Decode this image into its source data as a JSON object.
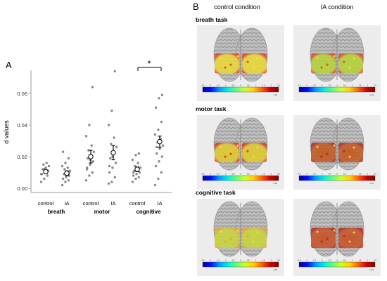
{
  "panel_a": {
    "letter": "A",
    "chart_data": {
      "type": "scatter",
      "ylabel": "d values",
      "ylim": [
        0,
        0.075
      ],
      "y_ticks": [
        "0.00",
        "0.02",
        "0.04",
        "0.06"
      ],
      "y_tick_values": [
        0,
        0.02,
        0.04,
        0.06
      ],
      "categories": [
        "control",
        "IA",
        "control",
        "IA",
        "control",
        "IA"
      ],
      "groups": [
        "breath",
        "motor",
        "cognitive"
      ],
      "significance_marker": "*",
      "significance_between": [
        4,
        5
      ],
      "columns": [
        {
          "mean": 0.0105,
          "err": 0.0012,
          "points": [
            0.004,
            0.006,
            0.008,
            0.009,
            0.01,
            0.011,
            0.012,
            0.013,
            0.014,
            0.015,
            0.016,
            0.009,
            0.012
          ]
        },
        {
          "mean": 0.0095,
          "err": 0.0015,
          "points": [
            0.002,
            0.004,
            0.005,
            0.006,
            0.007,
            0.008,
            0.009,
            0.01,
            0.011,
            0.012,
            0.013,
            0.014,
            0.016,
            0.019,
            0.023,
            0.008,
            0.01
          ]
        },
        {
          "mean": 0.02,
          "err": 0.004,
          "points": [
            0.005,
            0.008,
            0.01,
            0.013,
            0.015,
            0.017,
            0.019,
            0.021,
            0.023,
            0.024,
            0.027,
            0.033,
            0.04,
            0.064,
            0.012,
            0.018
          ]
        },
        {
          "mean": 0.0225,
          "err": 0.0045,
          "points": [
            0.003,
            0.004,
            0.007,
            0.01,
            0.013,
            0.016,
            0.019,
            0.022,
            0.026,
            0.028,
            0.032,
            0.04,
            0.049,
            0.074,
            0.014,
            0.02
          ]
        },
        {
          "mean": 0.012,
          "err": 0.0015,
          "points": [
            0.004,
            0.006,
            0.007,
            0.008,
            0.009,
            0.01,
            0.011,
            0.012,
            0.013,
            0.014,
            0.016,
            0.018,
            0.021,
            0.022,
            0.01
          ]
        },
        {
          "mean": 0.0295,
          "err": 0.0035,
          "points": [
            0.002,
            0.006,
            0.01,
            0.014,
            0.017,
            0.02,
            0.022,
            0.025,
            0.027,
            0.029,
            0.031,
            0.034,
            0.037,
            0.042,
            0.051,
            0.057,
            0.059,
            0.026
          ]
        }
      ]
    }
  },
  "panel_b": {
    "letter": "B",
    "col_headers": [
      "control condition",
      "IA condition"
    ],
    "rows": [
      {
        "label": "breath task",
        "patches": [
          {
            "tint": "#e8d83a",
            "hot": "#e63b1a"
          },
          {
            "tint": "#b6d23b",
            "hot": "#e3451c"
          }
        ]
      },
      {
        "label": "motor task",
        "patches": [
          {
            "tint": "#e0c92f",
            "hot": "#d6341c"
          },
          {
            "tint": "#c45a22",
            "hot": "#a8241c"
          }
        ]
      },
      {
        "label": "cognitive task",
        "patches": [
          {
            "tint": "#c9d43c",
            "hot": "#e4a53a"
          },
          {
            "tint": "#c6542a",
            "hot": "#b8201c"
          }
        ]
      }
    ],
    "colorbar_colors": [
      "#0000a0",
      "#0010ff",
      "#00a0ff",
      "#00f0e0",
      "#60ff80",
      "#d0ff20",
      "#ffd000",
      "#ff6000",
      "#d00000",
      "#800000"
    ],
    "colorbar_ticks": [
      "-2.5",
      "-2",
      "-1.5",
      "-1",
      "-0.5",
      "0",
      "0.5",
      "1",
      "1.5",
      "2",
      "2.5"
    ],
    "colorbar_unit": "x 10"
  }
}
